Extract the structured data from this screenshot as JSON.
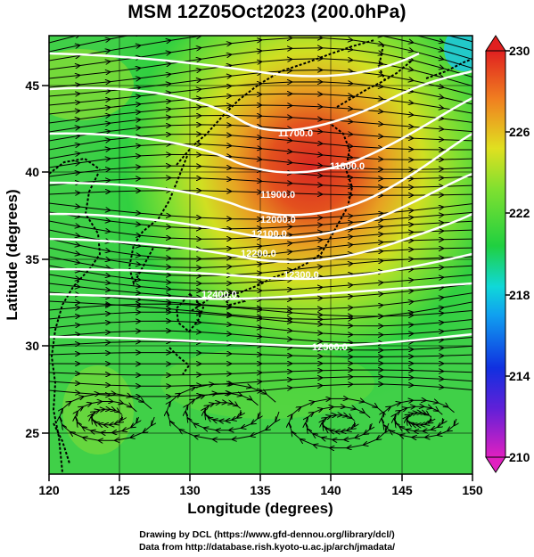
{
  "title": "MSM 12Z05Oct2023 (200.0hPa)",
  "xlabel": "Longitude (degrees)",
  "ylabel": "Latitude  (degrees)",
  "x_ticks": [
    "120",
    "125",
    "130",
    "135",
    "140",
    "145",
    "150"
  ],
  "y_ticks": [
    "25",
    "30",
    "35",
    "40",
    "45"
  ],
  "colorbar_ticks": [
    "230",
    "226",
    "222",
    "218",
    "214",
    "210"
  ],
  "credits": {
    "line1": "Drawing by DCL (https://www.gfd-dennou.org/library/dcl/)",
    "line2": "Data from http://database.rish.kyoto-u.ac.jp/arch/jmadata/"
  },
  "contour_labels": [
    "11700.0",
    "11800.0",
    "11900.0",
    "12000.0",
    "12100.0",
    "12200.0",
    "12300.0",
    "12400.0",
    "12500.0"
  ],
  "chart_data": {
    "type": "heatmap",
    "title": "MSM 12Z05Oct2023 (200.0hPa)",
    "xlabel": "Longitude (degrees)",
    "ylabel": "Latitude  (degrees)",
    "xlim": [
      120,
      150
    ],
    "ylim": [
      22.4,
      47.6
    ],
    "colorbar": {
      "min": 210,
      "max": 230,
      "ticks": [
        210,
        214,
        218,
        222,
        226,
        230
      ]
    },
    "colors": {
      "low": "#e020c0",
      "mid_low": "#1040e0",
      "cyan": "#10d8e0",
      "mid": "#20d040",
      "mid_high": "#c0e020",
      "high": "#e02020"
    },
    "shading_maximum": {
      "lon": 138,
      "lat": 40,
      "value": 229
    },
    "contours": [
      {
        "label": "11700.0",
        "lon": 137.0,
        "lat": 42.7
      },
      {
        "label": "11800.0",
        "lon": 140.3,
        "lat": 41.2
      },
      {
        "label": "11900.0",
        "lon": 136.2,
        "lat": 39.5
      },
      {
        "label": "12000.0",
        "lon": 137.3,
        "lat": 38.2
      },
      {
        "label": "12100.0",
        "lon": 136.4,
        "lat": 37.3
      },
      {
        "label": "12200.0",
        "lon": 135.4,
        "lat": 36.2
      },
      {
        "label": "12300.0",
        "lon": 139.0,
        "lat": 34.9
      },
      {
        "label": "12400.0",
        "lon": 132.5,
        "lat": 33.5
      },
      {
        "label": "12500.0",
        "lon": 142.0,
        "lat": 30.4
      }
    ],
    "flow": "westerly jet streamlines; anticyclonic swirl near 125E-140E, 24N-28N"
  }
}
